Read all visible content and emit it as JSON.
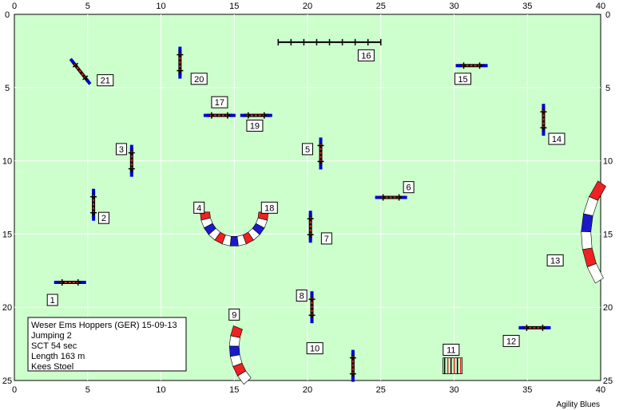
{
  "axis": {
    "x_range": [
      0,
      40
    ],
    "y_range": [
      0,
      25
    ],
    "tick_step": 5,
    "units": "m"
  },
  "colors": {
    "field": "#ccffcc",
    "grid": "#ffffff",
    "frame": "#000000",
    "pole_blue": "#0000cc",
    "pole_red": "#dd2222",
    "tunnel_blue": "#1a1acc",
    "tunnel_red": "#ee2222",
    "tunnel_white": "#ffffff"
  },
  "info": {
    "line1": "Weser Ems Hoppers (GER) 15-09-13",
    "line2": "Jumping 2",
    "line3": "SCT 54 sec",
    "line4": "Length 163 m",
    "line5": "Kees Stoel"
  },
  "footer": {
    "credit": "Agility Blues"
  },
  "obstacles": [
    {
      "number": "1",
      "type": "jump",
      "x": 3.8,
      "y": 18.3,
      "angle": 0,
      "label_x": 2.6,
      "label_y": 19.5
    },
    {
      "number": "2",
      "type": "jump",
      "x": 5.4,
      "y": 13.0,
      "angle": 90,
      "label_x": 6.1,
      "label_y": 13.9
    },
    {
      "number": "3",
      "type": "jump",
      "x": 8.0,
      "y": 10.0,
      "angle": 90,
      "label_x": 7.3,
      "label_y": 9.2
    },
    {
      "number": "4",
      "type": "tunnel_end",
      "x": 13.4,
      "y": 13.2,
      "angle": 0,
      "label_x": 12.6,
      "label_y": 13.2
    },
    {
      "number": "5",
      "type": "jump",
      "x": 20.9,
      "y": 9.5,
      "angle": 90,
      "label_x": 20.0,
      "label_y": 9.2
    },
    {
      "number": "6",
      "type": "jump",
      "x": 25.7,
      "y": 12.5,
      "angle": 0,
      "label_x": 26.9,
      "label_y": 11.8
    },
    {
      "number": "7",
      "type": "jump",
      "x": 20.2,
      "y": 14.5,
      "angle": 90,
      "label_x": 21.3,
      "label_y": 15.3
    },
    {
      "number": "8",
      "type": "jump",
      "x": 20.3,
      "y": 20.0,
      "angle": 90,
      "label_x": 19.6,
      "label_y": 19.2
    },
    {
      "number": "9",
      "type": "tunnel_end",
      "x": 15.0,
      "y": 21.2,
      "angle": 0,
      "label_x": 15.0,
      "label_y": 20.5
    },
    {
      "number": "10",
      "type": "none",
      "x": 20.5,
      "y": 22.8,
      "angle": 0,
      "label_x": 20.5,
      "label_y": 22.8
    },
    {
      "number": "11",
      "type": "none",
      "x": 29.8,
      "y": 22.9,
      "angle": 0,
      "label_x": 29.8,
      "label_y": 22.9
    },
    {
      "number": "12",
      "type": "jump",
      "x": 35.5,
      "y": 21.4,
      "angle": 0,
      "label_x": 33.9,
      "label_y": 22.3
    },
    {
      "number": "13",
      "type": "none",
      "x": 38.5,
      "y": 15.0,
      "angle": 0,
      "label_x": 36.9,
      "label_y": 16.8
    },
    {
      "number": "14",
      "type": "jump",
      "x": 36.1,
      "y": 7.2,
      "angle": 90,
      "label_x": 37.0,
      "label_y": 8.5
    },
    {
      "number": "15",
      "type": "jump",
      "x": 31.2,
      "y": 3.5,
      "angle": 0,
      "label_x": 30.6,
      "label_y": 4.4
    },
    {
      "number": "16",
      "type": "none",
      "x": 21.5,
      "y": 1.9,
      "angle": 0,
      "label_x": 24.0,
      "label_y": 2.8
    },
    {
      "number": "17",
      "type": "jump",
      "x": 14.0,
      "y": 6.9,
      "angle": 0,
      "label_x": 14.0,
      "label_y": 6.0
    },
    {
      "number": "18",
      "type": "tunnel_end",
      "x": 16.2,
      "y": 13.2,
      "angle": 0,
      "label_x": 17.4,
      "label_y": 13.2
    },
    {
      "number": "19",
      "type": "jump",
      "x": 16.5,
      "y": 6.9,
      "angle": 0,
      "label_x": 16.4,
      "label_y": 7.6
    },
    {
      "number": "20",
      "type": "jump",
      "x": 11.3,
      "y": 3.3,
      "angle": 90,
      "label_x": 12.6,
      "label_y": 4.4
    },
    {
      "number": "21",
      "type": "jump",
      "x": 4.5,
      "y": 3.9,
      "angle": 52,
      "label_x": 6.2,
      "label_y": 4.5
    }
  ],
  "extra_jumps": [
    {
      "x": 23.1,
      "y": 24.0,
      "angle": 90
    }
  ],
  "tunnels": [
    {
      "id": "tunnel-u",
      "cx": 15.0,
      "cy": 13.5,
      "r": 2.0,
      "from_deg": 180,
      "to_deg": 360
    },
    {
      "id": "tunnel-9",
      "cx": 18.5,
      "cy": 22.7,
      "r": 3.5,
      "from_deg": 158,
      "to_deg": 222
    },
    {
      "id": "tunnel-13",
      "cx": 45.0,
      "cy": 15.0,
      "r": 6.0,
      "from_deg": 145,
      "to_deg": 212
    }
  ],
  "dogwalk": {
    "x1": 18.0,
    "x2": 25.0,
    "y": 1.9,
    "posts": 9
  },
  "weave_cluster": {
    "x": 29.9,
    "y": 24.0,
    "poles": 6
  }
}
